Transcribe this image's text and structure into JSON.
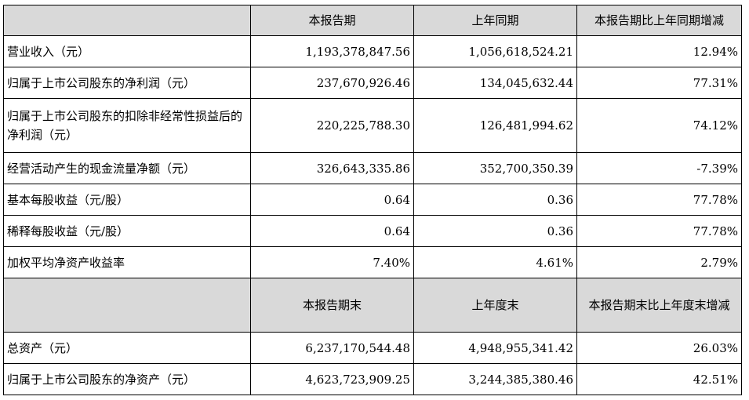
{
  "header": {
    "blank": "",
    "col1": "本报告期",
    "col2": "上年同期",
    "col3": "本报告期比上年同期增减"
  },
  "rows": [
    {
      "label": "营业收入（元）",
      "v1": "1,193,378,847.56",
      "v2": "1,056,618,524.21",
      "v3": "12.94%"
    },
    {
      "label": "归属于上市公司股东的净利润（元）",
      "v1": "237,670,926.46",
      "v2": "134,045,632.44",
      "v3": "77.31%"
    },
    {
      "label": "归属于上市公司股东的扣除非经常性损益后的净利润（元）",
      "v1": "220,225,788.30",
      "v2": "126,481,994.62",
      "v3": "74.12%"
    },
    {
      "label": "经营活动产生的现金流量净额（元）",
      "v1": "326,643,335.86",
      "v2": "352,700,350.39",
      "v3": "-7.39%"
    },
    {
      "label": "基本每股收益（元/股）",
      "v1": "0.64",
      "v2": "0.36",
      "v3": "77.78%"
    },
    {
      "label": "稀释每股收益（元/股）",
      "v1": "0.64",
      "v2": "0.36",
      "v3": "77.78%"
    },
    {
      "label": "加权平均净资产收益率",
      "v1": "7.40%",
      "v2": "4.61%",
      "v3": "2.79%"
    }
  ],
  "header2": {
    "blank": "",
    "col1": "本报告期末",
    "col2": "上年度末",
    "col3": "本报告期末比上年度末增减"
  },
  "rows2": [
    {
      "label": "总资产（元）",
      "v1": "6,237,170,544.48",
      "v2": "4,948,955,341.42",
      "v3": "26.03%"
    },
    {
      "label": "归属于上市公司股东的净资产（元）",
      "v1": "4,623,723,909.25",
      "v2": "3,244,385,380.46",
      "v3": "42.51%"
    }
  ],
  "colors": {
    "header_bg": "#d9d9d9",
    "border": "#000000"
  }
}
